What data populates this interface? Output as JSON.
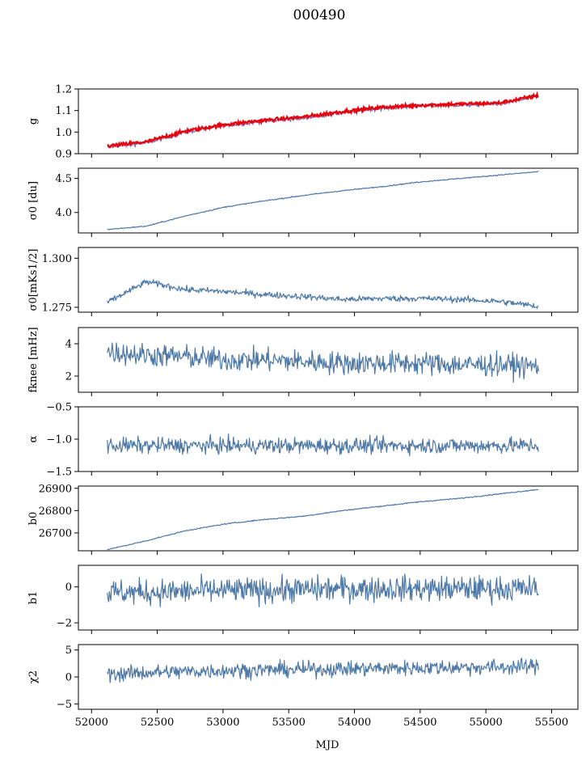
{
  "figure": {
    "title": "000490"
  },
  "chart_data": {
    "type": "line",
    "title": "000490",
    "xlabel": "MJD",
    "xlim": [
      51900,
      55700
    ],
    "xticks": [
      52000,
      52500,
      53000,
      53500,
      54000,
      54500,
      55000,
      55500
    ],
    "x_range": [
      52120,
      55400
    ],
    "legend": "none",
    "grid": false,
    "panels": [
      {
        "ylabel": "g",
        "ylim": [
          0.9,
          1.2
        ],
        "yticks": [
          0.9,
          1.0,
          1.1,
          1.2
        ],
        "series": [
          {
            "color": "#8a6aa8",
            "values": [
              0.93,
              0.95,
              1.0,
              1.03,
              1.05,
              1.065,
              1.09,
              1.11,
              1.12,
              1.125,
              1.13,
              1.165
            ]
          },
          {
            "color": "#e8000b",
            "values": [
              0.935,
              0.955,
              1.005,
              1.035,
              1.055,
              1.07,
              1.095,
              1.115,
              1.125,
              1.13,
              1.135,
              1.17
            ]
          }
        ],
        "noise": 0.004
      },
      {
        "ylabel": "σ0 [du]",
        "ylim": [
          3.7,
          4.65
        ],
        "yticks": [
          4.0,
          4.5
        ],
        "series": [
          {
            "color": "#4e79a7",
            "values": [
              3.75,
              3.8,
              3.95,
              4.08,
              4.17,
              4.25,
              4.32,
              4.38,
              4.45,
              4.5,
              4.55,
              4.6
            ]
          }
        ],
        "noise": 0.004
      },
      {
        "ylabel": "σ0[mKs1/2]",
        "ylim": [
          1.2725,
          1.3055
        ],
        "yticks": [
          1.275,
          1.3
        ],
        "series": [
          {
            "color": "#4e79a7",
            "values": [
              1.2775,
              1.288,
              1.284,
              1.283,
              1.2815,
              1.2805,
              1.279,
              1.2795,
              1.2795,
              1.279,
              1.278,
              1.2755
            ]
          }
        ],
        "noise": 0.0008
      },
      {
        "ylabel": "fknee [mHz]",
        "ylim": [
          1.0,
          5.0
        ],
        "yticks": [
          2,
          4
        ],
        "series": [
          {
            "color": "#4e79a7",
            "values": [
              3.5,
              3.3,
              3.2,
              3.0,
              3.0,
              2.9,
              2.8,
              2.8,
              2.8,
              2.7,
              2.7,
              2.6
            ]
          }
        ],
        "noise": 0.35
      },
      {
        "ylabel": "α",
        "ylim": [
          -1.5,
          -0.5
        ],
        "yticks": [
          -1.5,
          -1.0,
          -0.5
        ],
        "series": [
          {
            "color": "#4e79a7",
            "values": [
              -1.1,
              -1.1,
              -1.1,
              -1.1,
              -1.1,
              -1.1,
              -1.1,
              -1.1,
              -1.1,
              -1.1,
              -1.1,
              -1.1
            ]
          }
        ],
        "noise": 0.06
      },
      {
        "ylabel": "b0",
        "ylim": [
          26620,
          26910
        ],
        "yticks": [
          26700,
          26800,
          26900
        ],
        "series": [
          {
            "color": "#4e79a7",
            "values": [
              26625,
              26665,
              26710,
              26740,
              26760,
              26775,
              26800,
              26820,
              26840,
              26855,
              26875,
              26895
            ]
          }
        ],
        "noise": 1.2
      },
      {
        "ylabel": "b1",
        "ylim": [
          -2.4,
          1.2
        ],
        "yticks": [
          -2,
          0
        ],
        "series": [
          {
            "color": "#4e79a7",
            "values": [
              -0.3,
              -0.3,
              -0.25,
              -0.2,
              -0.2,
              -0.15,
              -0.1,
              -0.1,
              -0.1,
              -0.1,
              -0.1,
              -0.1
            ]
          }
        ],
        "noise": 0.35
      },
      {
        "ylabel": "χ2",
        "ylim": [
          -6,
          6
        ],
        "yticks": [
          -5,
          0,
          5
        ],
        "series": [
          {
            "color": "#4e79a7",
            "values": [
              0.5,
              0.8,
              1.0,
              1.2,
              1.3,
              1.4,
              1.5,
              1.6,
              1.7,
              1.8,
              1.8,
              2.0
            ]
          }
        ],
        "noise": 0.7
      }
    ]
  }
}
